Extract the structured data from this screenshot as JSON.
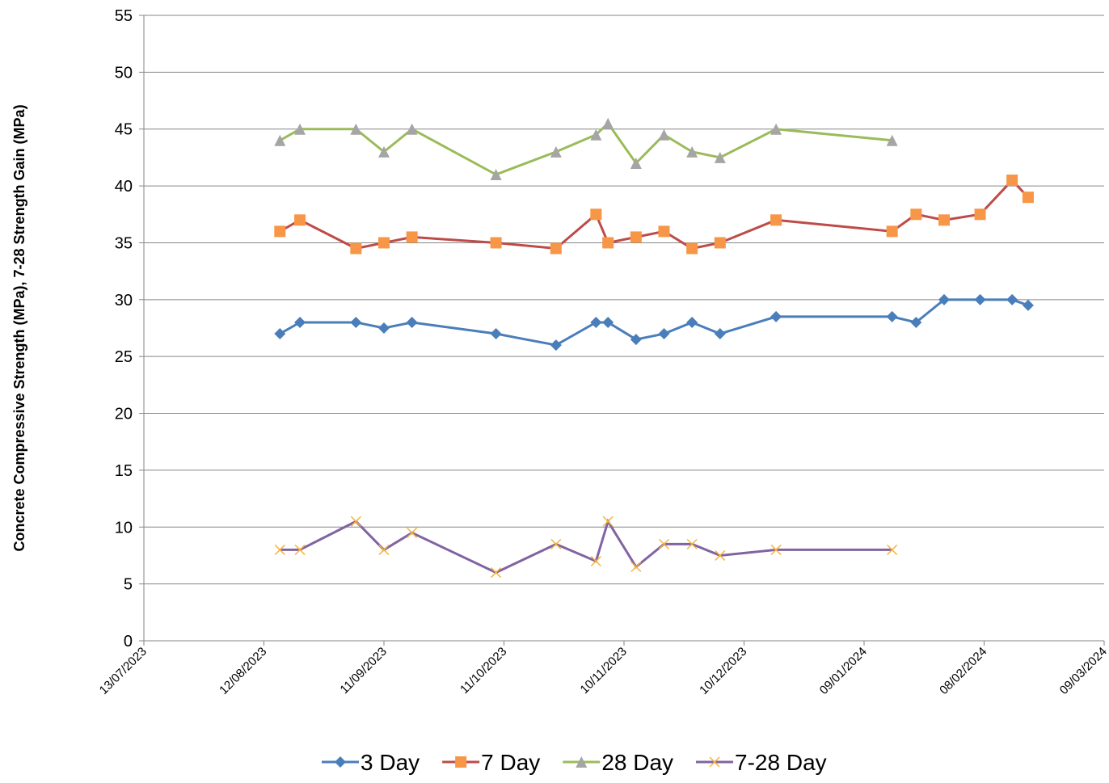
{
  "chart_data": {
    "type": "line",
    "y_label": "Concrete Compressive Strength (MPa), 7-28 Strength Gain (MPa)",
    "x": [
      "16/08/2023",
      "21/08/2023",
      "04/09/2023",
      "11/09/2023",
      "18/09/2023",
      "09/10/2023",
      "24/10/2023",
      "03/11/2023",
      "06/11/2023",
      "13/11/2023",
      "20/11/2023",
      "27/11/2023",
      "04/12/2023",
      "18/12/2023",
      "16/01/2024",
      "22/01/2024",
      "29/01/2024",
      "07/02/2024",
      "15/02/2024",
      "19/02/2024"
    ],
    "series": [
      {
        "name": "3 Day",
        "color": "#4a7ebb",
        "marker": "diamond",
        "marker_color": "#4a7ebb",
        "values": [
          27,
          28,
          28,
          27.5,
          28,
          27,
          26,
          28,
          28,
          26.5,
          27,
          28,
          27,
          28.5,
          28.5,
          28,
          30,
          30,
          30,
          29.5
        ]
      },
      {
        "name": "7 Day",
        "color": "#be4b48",
        "marker": "square",
        "marker_color": "#f79646",
        "values": [
          36,
          37,
          34.5,
          35,
          35.5,
          35,
          34.5,
          37.5,
          35,
          35.5,
          36,
          34.5,
          35,
          37,
          36,
          37.5,
          37,
          37.5,
          40.5,
          39
        ]
      },
      {
        "name": "28 Day",
        "color": "#9bbb59",
        "marker": "triangle",
        "marker_color": "#a5a5a5",
        "values": [
          44,
          45,
          45,
          43,
          45,
          41,
          43,
          44.5,
          45.5,
          42,
          44.5,
          43,
          42.5,
          45,
          44,
          null,
          null,
          null,
          null,
          null
        ]
      },
      {
        "name": "7-28 Day",
        "color": "#8064a2",
        "marker": "x",
        "marker_color": "#f7b33b",
        "values": [
          8,
          8,
          10.5,
          8,
          9.5,
          6,
          8.5,
          7,
          10.5,
          6.5,
          8.5,
          8.5,
          7.5,
          8,
          8,
          null,
          null,
          null,
          null,
          null
        ]
      }
    ],
    "xlim": [
      "13/07/2023",
      "09/03/2024"
    ],
    "xticks": [
      "13/07/2023",
      "12/08/2023",
      "11/09/2023",
      "11/10/2023",
      "10/11/2023",
      "10/12/2023",
      "09/01/2024",
      "08/02/2024",
      "09/03/2024"
    ],
    "ylim": [
      0,
      55
    ],
    "yticks": [
      0,
      5,
      10,
      15,
      20,
      25,
      30,
      35,
      40,
      45,
      50,
      55
    ],
    "grid": true,
    "legend": "bottom"
  }
}
